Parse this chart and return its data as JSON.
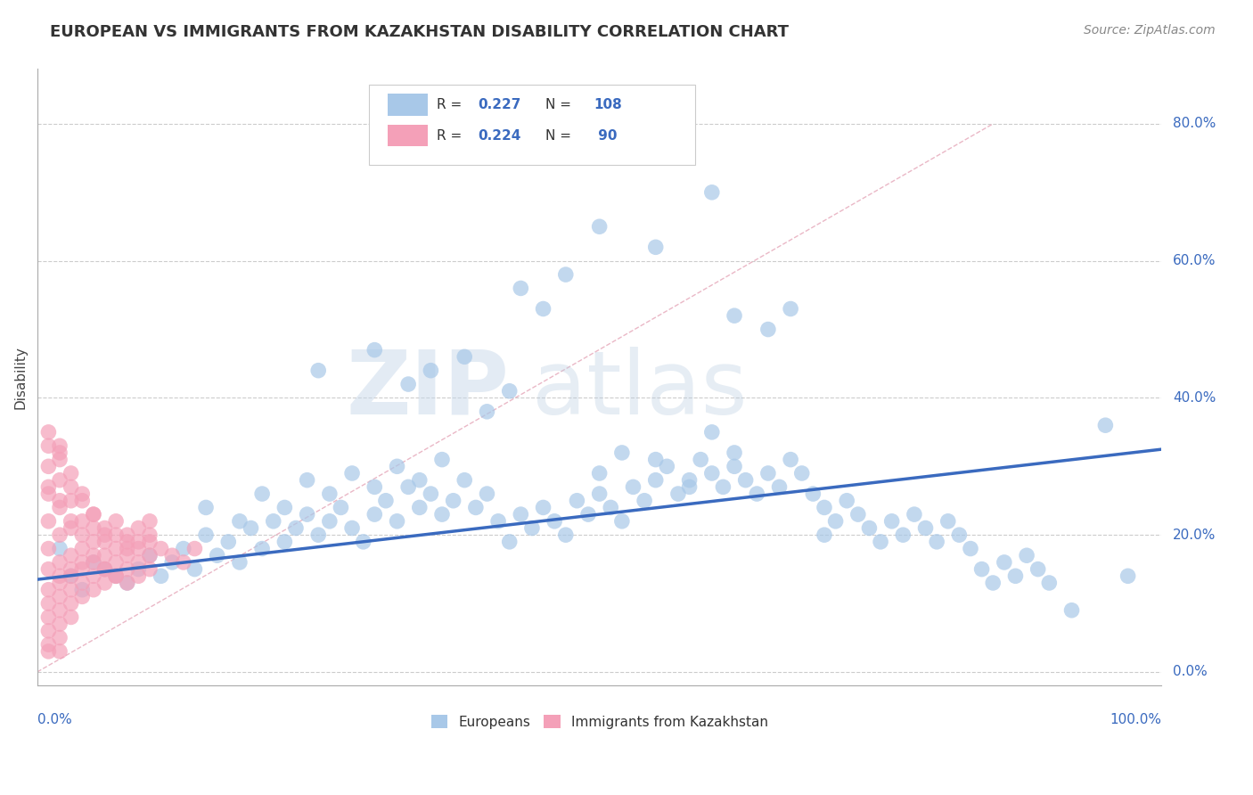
{
  "title": "EUROPEAN VS IMMIGRANTS FROM KAZAKHSTAN DISABILITY CORRELATION CHART",
  "source_text": "Source: ZipAtlas.com",
  "ylabel": "Disability",
  "watermark_zip": "ZIP",
  "watermark_atlas": "atlas",
  "blue_color": "#a8c8e8",
  "pink_color": "#f4a0b8",
  "trend_line_color": "#3a6abf",
  "ref_line_color": "#e8b0c0",
  "blue_scatter": [
    [
      0.02,
      0.18
    ],
    [
      0.03,
      0.14
    ],
    [
      0.04,
      0.12
    ],
    [
      0.05,
      0.16
    ],
    [
      0.06,
      0.15
    ],
    [
      0.07,
      0.14
    ],
    [
      0.08,
      0.13
    ],
    [
      0.09,
      0.15
    ],
    [
      0.1,
      0.17
    ],
    [
      0.11,
      0.14
    ],
    [
      0.12,
      0.16
    ],
    [
      0.13,
      0.18
    ],
    [
      0.14,
      0.15
    ],
    [
      0.15,
      0.2
    ],
    [
      0.16,
      0.17
    ],
    [
      0.17,
      0.19
    ],
    [
      0.18,
      0.16
    ],
    [
      0.19,
      0.21
    ],
    [
      0.2,
      0.18
    ],
    [
      0.21,
      0.22
    ],
    [
      0.22,
      0.19
    ],
    [
      0.23,
      0.21
    ],
    [
      0.24,
      0.23
    ],
    [
      0.25,
      0.2
    ],
    [
      0.26,
      0.22
    ],
    [
      0.27,
      0.24
    ],
    [
      0.28,
      0.21
    ],
    [
      0.29,
      0.19
    ],
    [
      0.3,
      0.23
    ],
    [
      0.31,
      0.25
    ],
    [
      0.32,
      0.22
    ],
    [
      0.33,
      0.27
    ],
    [
      0.34,
      0.24
    ],
    [
      0.35,
      0.26
    ],
    [
      0.36,
      0.23
    ],
    [
      0.37,
      0.25
    ],
    [
      0.38,
      0.28
    ],
    [
      0.39,
      0.24
    ],
    [
      0.4,
      0.26
    ],
    [
      0.41,
      0.22
    ],
    [
      0.42,
      0.19
    ],
    [
      0.43,
      0.23
    ],
    [
      0.44,
      0.21
    ],
    [
      0.45,
      0.24
    ],
    [
      0.46,
      0.22
    ],
    [
      0.47,
      0.2
    ],
    [
      0.48,
      0.25
    ],
    [
      0.49,
      0.23
    ],
    [
      0.5,
      0.26
    ],
    [
      0.51,
      0.24
    ],
    [
      0.52,
      0.22
    ],
    [
      0.53,
      0.27
    ],
    [
      0.54,
      0.25
    ],
    [
      0.55,
      0.28
    ],
    [
      0.56,
      0.3
    ],
    [
      0.57,
      0.26
    ],
    [
      0.58,
      0.28
    ],
    [
      0.59,
      0.31
    ],
    [
      0.6,
      0.29
    ],
    [
      0.61,
      0.27
    ],
    [
      0.62,
      0.3
    ],
    [
      0.63,
      0.28
    ],
    [
      0.64,
      0.26
    ],
    [
      0.65,
      0.29
    ],
    [
      0.66,
      0.27
    ],
    [
      0.67,
      0.31
    ],
    [
      0.68,
      0.29
    ],
    [
      0.69,
      0.26
    ],
    [
      0.7,
      0.24
    ],
    [
      0.71,
      0.22
    ],
    [
      0.72,
      0.25
    ],
    [
      0.73,
      0.23
    ],
    [
      0.74,
      0.21
    ],
    [
      0.75,
      0.19
    ],
    [
      0.76,
      0.22
    ],
    [
      0.77,
      0.2
    ],
    [
      0.78,
      0.23
    ],
    [
      0.79,
      0.21
    ],
    [
      0.8,
      0.19
    ],
    [
      0.81,
      0.22
    ],
    [
      0.82,
      0.2
    ],
    [
      0.83,
      0.18
    ],
    [
      0.84,
      0.15
    ],
    [
      0.85,
      0.13
    ],
    [
      0.86,
      0.16
    ],
    [
      0.87,
      0.14
    ],
    [
      0.88,
      0.17
    ],
    [
      0.89,
      0.15
    ],
    [
      0.9,
      0.13
    ],
    [
      0.25,
      0.44
    ],
    [
      0.3,
      0.47
    ],
    [
      0.33,
      0.42
    ],
    [
      0.35,
      0.44
    ],
    [
      0.38,
      0.46
    ],
    [
      0.4,
      0.38
    ],
    [
      0.42,
      0.41
    ],
    [
      0.43,
      0.56
    ],
    [
      0.45,
      0.53
    ],
    [
      0.47,
      0.58
    ],
    [
      0.5,
      0.29
    ],
    [
      0.52,
      0.32
    ],
    [
      0.55,
      0.31
    ],
    [
      0.58,
      0.27
    ],
    [
      0.6,
      0.35
    ],
    [
      0.62,
      0.32
    ],
    [
      0.65,
      0.5
    ],
    [
      0.67,
      0.53
    ],
    [
      0.7,
      0.2
    ],
    [
      0.95,
      0.36
    ],
    [
      0.97,
      0.14
    ],
    [
      0.15,
      0.24
    ],
    [
      0.18,
      0.22
    ],
    [
      0.2,
      0.26
    ],
    [
      0.22,
      0.24
    ],
    [
      0.24,
      0.28
    ],
    [
      0.26,
      0.26
    ],
    [
      0.28,
      0.29
    ],
    [
      0.3,
      0.27
    ],
    [
      0.32,
      0.3
    ],
    [
      0.34,
      0.28
    ],
    [
      0.36,
      0.31
    ],
    [
      0.5,
      0.65
    ],
    [
      0.55,
      0.62
    ],
    [
      0.6,
      0.7
    ],
    [
      0.62,
      0.52
    ],
    [
      0.92,
      0.09
    ]
  ],
  "pink_scatter": [
    [
      0.01,
      0.15
    ],
    [
      0.01,
      0.18
    ],
    [
      0.01,
      0.22
    ],
    [
      0.01,
      0.26
    ],
    [
      0.01,
      0.3
    ],
    [
      0.01,
      0.1
    ],
    [
      0.01,
      0.12
    ],
    [
      0.01,
      0.08
    ],
    [
      0.01,
      0.06
    ],
    [
      0.01,
      0.04
    ],
    [
      0.02,
      0.16
    ],
    [
      0.02,
      0.2
    ],
    [
      0.02,
      0.24
    ],
    [
      0.02,
      0.28
    ],
    [
      0.02,
      0.32
    ],
    [
      0.02,
      0.11
    ],
    [
      0.02,
      0.13
    ],
    [
      0.02,
      0.09
    ],
    [
      0.02,
      0.07
    ],
    [
      0.02,
      0.05
    ],
    [
      0.03,
      0.17
    ],
    [
      0.03,
      0.21
    ],
    [
      0.03,
      0.25
    ],
    [
      0.03,
      0.29
    ],
    [
      0.03,
      0.14
    ],
    [
      0.03,
      0.12
    ],
    [
      0.03,
      0.1
    ],
    [
      0.03,
      0.08
    ],
    [
      0.04,
      0.18
    ],
    [
      0.04,
      0.22
    ],
    [
      0.04,
      0.26
    ],
    [
      0.04,
      0.15
    ],
    [
      0.04,
      0.13
    ],
    [
      0.04,
      0.11
    ],
    [
      0.05,
      0.19
    ],
    [
      0.05,
      0.23
    ],
    [
      0.05,
      0.16
    ],
    [
      0.05,
      0.14
    ],
    [
      0.05,
      0.12
    ],
    [
      0.06,
      0.2
    ],
    [
      0.06,
      0.17
    ],
    [
      0.06,
      0.15
    ],
    [
      0.06,
      0.13
    ],
    [
      0.07,
      0.18
    ],
    [
      0.07,
      0.16
    ],
    [
      0.07,
      0.14
    ],
    [
      0.08,
      0.19
    ],
    [
      0.08,
      0.17
    ],
    [
      0.08,
      0.15
    ],
    [
      0.09,
      0.18
    ],
    [
      0.09,
      0.16
    ],
    [
      0.1,
      0.19
    ],
    [
      0.1,
      0.17
    ],
    [
      0.11,
      0.18
    ],
    [
      0.12,
      0.17
    ],
    [
      0.13,
      0.16
    ],
    [
      0.14,
      0.18
    ],
    [
      0.01,
      0.35
    ],
    [
      0.02,
      0.33
    ],
    [
      0.01,
      0.27
    ],
    [
      0.02,
      0.25
    ],
    [
      0.03,
      0.27
    ],
    [
      0.04,
      0.25
    ],
    [
      0.05,
      0.23
    ],
    [
      0.06,
      0.21
    ],
    [
      0.07,
      0.22
    ],
    [
      0.08,
      0.2
    ],
    [
      0.09,
      0.21
    ],
    [
      0.1,
      0.22
    ],
    [
      0.02,
      0.14
    ],
    [
      0.03,
      0.15
    ],
    [
      0.04,
      0.16
    ],
    [
      0.05,
      0.17
    ],
    [
      0.06,
      0.15
    ],
    [
      0.07,
      0.14
    ],
    [
      0.08,
      0.13
    ],
    [
      0.09,
      0.14
    ],
    [
      0.1,
      0.15
    ],
    [
      0.01,
      0.33
    ],
    [
      0.02,
      0.31
    ],
    [
      0.03,
      0.22
    ],
    [
      0.04,
      0.2
    ],
    [
      0.05,
      0.21
    ],
    [
      0.06,
      0.19
    ],
    [
      0.07,
      0.2
    ],
    [
      0.08,
      0.18
    ],
    [
      0.09,
      0.19
    ],
    [
      0.1,
      0.2
    ],
    [
      0.01,
      0.03
    ],
    [
      0.02,
      0.03
    ]
  ],
  "xlim": [
    0.0,
    1.0
  ],
  "ylim": [
    -0.02,
    0.88
  ],
  "yticks": [
    0.0,
    0.2,
    0.4,
    0.6,
    0.8
  ],
  "ytick_labels": [
    "0.0%",
    "20.0%",
    "40.0%",
    "60.0%",
    "80.0%"
  ],
  "xtick_left_label": "0.0%",
  "xtick_right_label": "100.0%",
  "trend_x": [
    0.0,
    1.0
  ],
  "trend_y": [
    0.135,
    0.325
  ],
  "ref_line_x": [
    0.0,
    0.85
  ],
  "ref_line_y": [
    0.0,
    0.8
  ]
}
